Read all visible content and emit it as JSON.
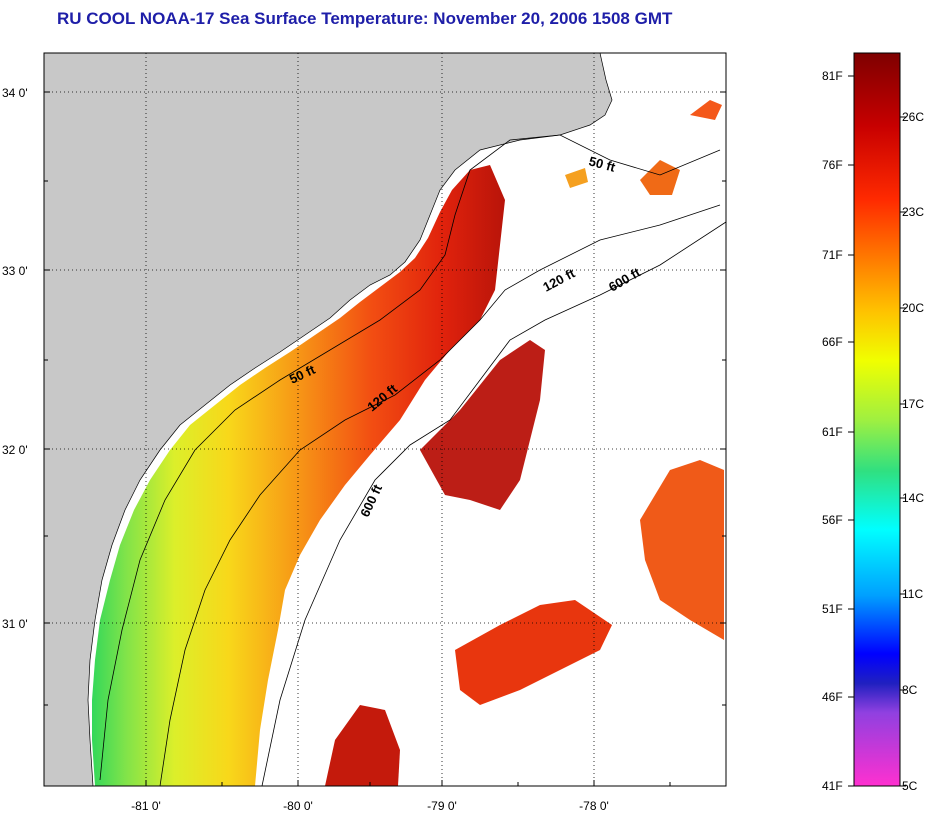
{
  "title": "RU COOL  NOAA-17  Sea Surface Temperature:  November 20, 2006 1508 GMT",
  "map": {
    "lat_ticks": [
      "34 0'",
      "33 0'",
      "32 0'",
      "31 0'"
    ],
    "lon_ticks": [
      "-81 0'",
      "-80 0'",
      "-79 0'",
      "-78 0'"
    ],
    "contours": [
      "50 ft",
      "120 ft",
      "600 ft",
      "50 ft",
      "120 ft",
      "600 ft"
    ]
  },
  "colorbar": {
    "fahrenheit": [
      "81F",
      "76F",
      "71F",
      "66F",
      "61F",
      "56F",
      "51F",
      "46F",
      "41F"
    ],
    "celsius": [
      "26C",
      "23C",
      "20C",
      "17C",
      "14C",
      "11C",
      "8C",
      "5C"
    ]
  },
  "colors": {
    "title": "#1e1ea8",
    "land": "#c8c8c8",
    "ocean_no_data": "#ffffff"
  }
}
